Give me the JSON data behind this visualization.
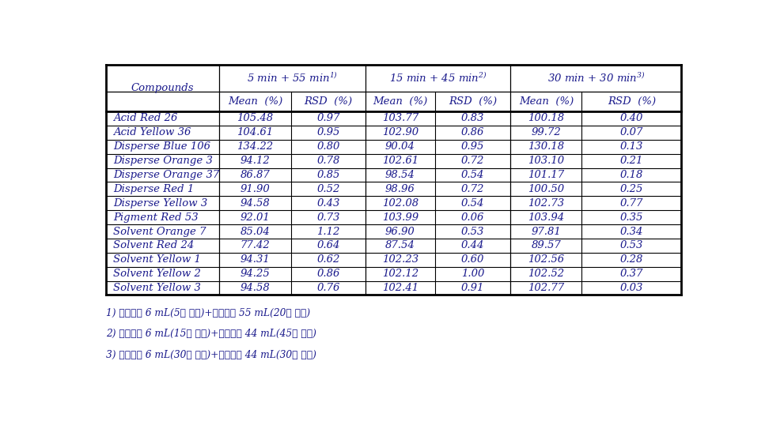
{
  "compounds": [
    "Acid Red 26",
    "Acid Yellow 36",
    "Disperse Blue 106",
    "Disperse Orange 3",
    "Disperse Orange 37",
    "Disperse Red 1",
    "Disperse Yellow 3",
    "Pigment Red 53",
    "Solvent Orange 7",
    "Solvent Red 24",
    "Solvent Yellow 1",
    "Solvent Yellow 2",
    "Solvent Yellow 3"
  ],
  "col1_header": "5 min + 55 min",
  "col1_superscript": "1)",
  "col2_header": "15 min + 45 min",
  "col2_superscript": "2)",
  "col3_header": "30 min + 30 min",
  "col3_superscript": "3)",
  "subheader_mean": "Mean  (%)",
  "subheader_rsd": "RSD  (%)",
  "compounds_header": "Compounds",
  "data": [
    [
      105.48,
      0.97,
      103.77,
      0.83,
      100.18,
      0.4
    ],
    [
      104.61,
      0.95,
      102.9,
      0.86,
      99.72,
      0.07
    ],
    [
      134.22,
      0.8,
      90.04,
      0.95,
      130.18,
      0.13
    ],
    [
      94.12,
      0.78,
      102.61,
      0.72,
      103.1,
      0.21
    ],
    [
      86.87,
      0.85,
      98.54,
      0.54,
      101.17,
      0.18
    ],
    [
      91.9,
      0.52,
      98.96,
      0.72,
      100.5,
      0.25
    ],
    [
      94.58,
      0.43,
      102.08,
      0.54,
      102.73,
      0.77
    ],
    [
      92.01,
      0.73,
      103.99,
      0.06,
      103.94,
      0.35
    ],
    [
      85.04,
      1.12,
      96.9,
      0.53,
      97.81,
      0.34
    ],
    [
      77.42,
      0.64,
      87.54,
      0.44,
      89.57,
      0.53
    ],
    [
      94.31,
      0.62,
      102.23,
      0.6,
      102.56,
      0.28
    ],
    [
      94.25,
      0.86,
      102.12,
      1.0,
      102.52,
      0.37
    ],
    [
      94.58,
      0.76,
      102.41,
      0.91,
      102.77,
      0.03
    ]
  ],
  "footnotes": [
    "1) 추출용매 6 mL(5분 추출)+추출용매 55 mL(20분 추출)",
    "2) 추출용매 6 mL(15분 추출)+추출용매 44 mL(45분 추출)",
    "3) 추출용매 6 mL(30분 추출)+추출용매 44 mL(30분 추출)"
  ],
  "text_color": "#1a1a8c",
  "line_color": "#000000",
  "bg_color": "#ffffff",
  "font_size": 9.5,
  "footnote_font_size": 8.8
}
